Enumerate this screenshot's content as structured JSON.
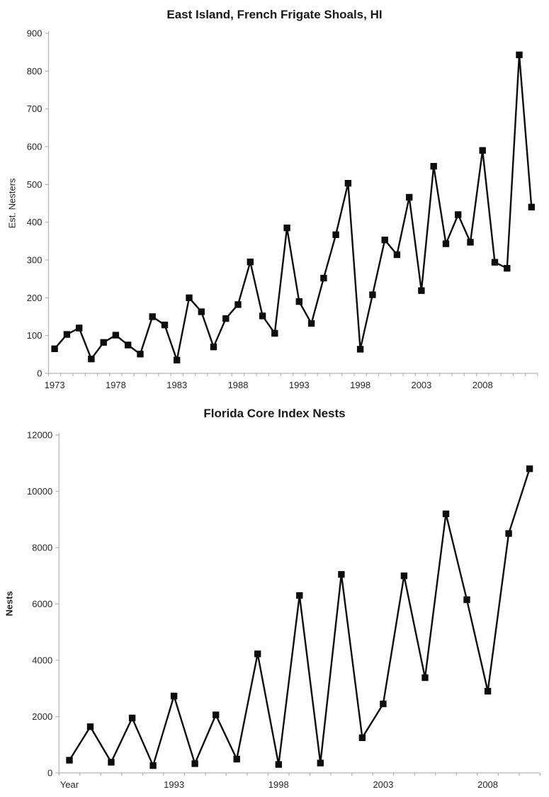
{
  "chart_data": [
    {
      "type": "line",
      "title": "East Island, French Frigate Shoals, HI",
      "ylabel": "Est. Nesters",
      "xlabel": "",
      "ylim": [
        0,
        900
      ],
      "ytick_step": 100,
      "yticks": [
        0,
        100,
        200,
        300,
        400,
        500,
        600,
        700,
        800,
        900
      ],
      "grid": false,
      "legend": "none",
      "marker": "filled-square",
      "x": [
        1973,
        1974,
        1975,
        1976,
        1977,
        1978,
        1979,
        1980,
        1981,
        1982,
        1983,
        1984,
        1985,
        1986,
        1987,
        1988,
        1989,
        1990,
        1991,
        1992,
        1993,
        1994,
        1995,
        1996,
        1997,
        1998,
        1999,
        2000,
        2001,
        2002,
        2003,
        2004,
        2005,
        2006,
        2007,
        2008,
        2009,
        2010,
        2011,
        2012
      ],
      "values": [
        65,
        103,
        120,
        38,
        82,
        101,
        75,
        51,
        150,
        128,
        35,
        200,
        163,
        70,
        145,
        182,
        295,
        152,
        106,
        385,
        190,
        132,
        252,
        367,
        503,
        64,
        208,
        353,
        314,
        466,
        219,
        548,
        343,
        420,
        347,
        590,
        294,
        278,
        843,
        440
      ],
      "xtick_labels": [
        "1973",
        "1978",
        "1983",
        "1988",
        "1993",
        "1998",
        "2003",
        "2008"
      ],
      "xtick_indices": [
        0,
        5,
        10,
        15,
        20,
        25,
        30,
        35
      ],
      "line_color": "#0d0d0d",
      "axis_color": "#b3b3b3",
      "text_color": "#262626"
    },
    {
      "type": "line",
      "title": "Florida Core Index Nests",
      "ylabel": "Nests",
      "xlabel": "",
      "ylim": [
        0,
        12000
      ],
      "ytick_step": 2000,
      "yticks": [
        0,
        2000,
        4000,
        6000,
        8000,
        10000,
        12000
      ],
      "grid": false,
      "legend": "none",
      "marker": "filled-square",
      "x": [
        1988,
        1989,
        1990,
        1991,
        1992,
        1993,
        1994,
        1995,
        1996,
        1997,
        1998,
        1999,
        2000,
        2001,
        2002,
        2003,
        2004,
        2005,
        2006,
        2007,
        2008,
        2009,
        2010
      ],
      "values": [
        450,
        1640,
        380,
        1950,
        260,
        2730,
        330,
        2060,
        490,
        4230,
        300,
        6300,
        350,
        7050,
        1250,
        2450,
        7000,
        3380,
        9200,
        6150,
        2900,
        8500,
        10800
      ],
      "xtick_labels": [
        "Year",
        "1993",
        "1998",
        "2003",
        "2008"
      ],
      "xtick_indices": [
        0,
        5,
        10,
        15,
        20
      ],
      "line_color": "#0d0d0d",
      "axis_color": "#b3b3b3",
      "text_color": "#262626"
    }
  ]
}
